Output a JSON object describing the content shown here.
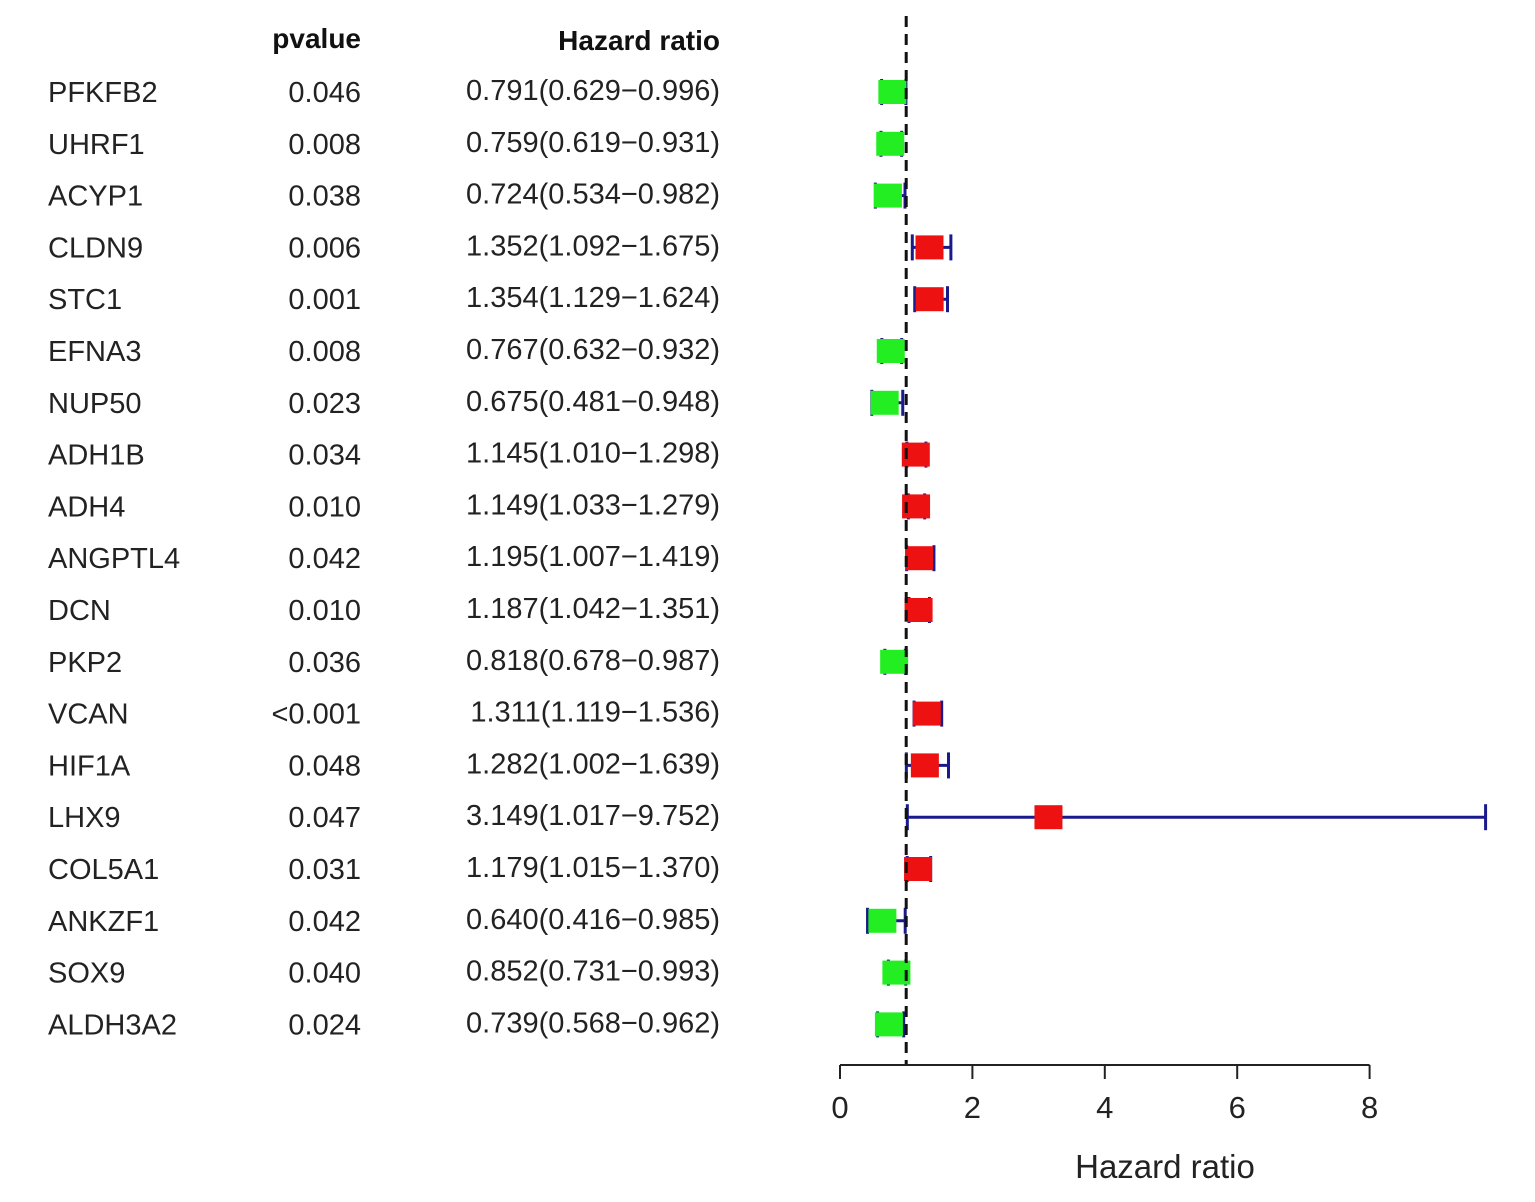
{
  "chart_data": {
    "type": "forest",
    "headers": {
      "pvalue": "pvalue",
      "hr": "Hazard ratio"
    },
    "xlabel": "Hazard ratio",
    "xticks": [
      0,
      2,
      4,
      6,
      8
    ],
    "xlim": [
      0,
      8
    ],
    "reference_line": 1,
    "colors": {
      "protective": "#22ee22",
      "risk": "#ee1111",
      "ci": "#1a1a8c",
      "axis": "#222222"
    },
    "rows": [
      {
        "gene": "PFKFB2",
        "pvalue": "0.046",
        "hr_text": "0.791(0.629−0.996)",
        "hr": 0.791,
        "lower": 0.629,
        "upper": 0.996
      },
      {
        "gene": "UHRF1",
        "pvalue": "0.008",
        "hr_text": "0.759(0.619−0.931)",
        "hr": 0.759,
        "lower": 0.619,
        "upper": 0.931
      },
      {
        "gene": "ACYP1",
        "pvalue": "0.038",
        "hr_text": "0.724(0.534−0.982)",
        "hr": 0.724,
        "lower": 0.534,
        "upper": 0.982
      },
      {
        "gene": "CLDN9",
        "pvalue": "0.006",
        "hr_text": "1.352(1.092−1.675)",
        "hr": 1.352,
        "lower": 1.092,
        "upper": 1.675
      },
      {
        "gene": "STC1",
        "pvalue": "0.001",
        "hr_text": "1.354(1.129−1.624)",
        "hr": 1.354,
        "lower": 1.129,
        "upper": 1.624
      },
      {
        "gene": "EFNA3",
        "pvalue": "0.008",
        "hr_text": "0.767(0.632−0.932)",
        "hr": 0.767,
        "lower": 0.632,
        "upper": 0.932
      },
      {
        "gene": "NUP50",
        "pvalue": "0.023",
        "hr_text": "0.675(0.481−0.948)",
        "hr": 0.675,
        "lower": 0.481,
        "upper": 0.948
      },
      {
        "gene": "ADH1B",
        "pvalue": "0.034",
        "hr_text": "1.145(1.010−1.298)",
        "hr": 1.145,
        "lower": 1.01,
        "upper": 1.298
      },
      {
        "gene": "ADH4",
        "pvalue": "0.010",
        "hr_text": "1.149(1.033−1.279)",
        "hr": 1.149,
        "lower": 1.033,
        "upper": 1.279
      },
      {
        "gene": "ANGPTL4",
        "pvalue": "0.042",
        "hr_text": "1.195(1.007−1.419)",
        "hr": 1.195,
        "lower": 1.007,
        "upper": 1.419
      },
      {
        "gene": "DCN",
        "pvalue": "0.010",
        "hr_text": "1.187(1.042−1.351)",
        "hr": 1.187,
        "lower": 1.042,
        "upper": 1.351
      },
      {
        "gene": "PKP2",
        "pvalue": "0.036",
        "hr_text": "0.818(0.678−0.987)",
        "hr": 0.818,
        "lower": 0.678,
        "upper": 0.987
      },
      {
        "gene": "VCAN",
        "pvalue": "<0.001",
        "hr_text": "1.311(1.119−1.536)",
        "hr": 1.311,
        "lower": 1.119,
        "upper": 1.536
      },
      {
        "gene": "HIF1A",
        "pvalue": "0.048",
        "hr_text": "1.282(1.002−1.639)",
        "hr": 1.282,
        "lower": 1.002,
        "upper": 1.639
      },
      {
        "gene": "LHX9",
        "pvalue": "0.047",
        "hr_text": "3.149(1.017−9.752)",
        "hr": 3.149,
        "lower": 1.017,
        "upper": 9.752
      },
      {
        "gene": "COL5A1",
        "pvalue": "0.031",
        "hr_text": "1.179(1.015−1.370)",
        "hr": 1.179,
        "lower": 1.015,
        "upper": 1.37
      },
      {
        "gene": "ANKZF1",
        "pvalue": "0.042",
        "hr_text": "0.640(0.416−0.985)",
        "hr": 0.64,
        "lower": 0.416,
        "upper": 0.985
      },
      {
        "gene": "SOX9",
        "pvalue": "0.040",
        "hr_text": "0.852(0.731−0.993)",
        "hr": 0.852,
        "lower": 0.731,
        "upper": 0.993
      },
      {
        "gene": "ALDH3A2",
        "pvalue": "0.024",
        "hr_text": "0.739(0.568−0.962)",
        "hr": 0.739,
        "lower": 0.568,
        "upper": 0.962
      }
    ]
  }
}
